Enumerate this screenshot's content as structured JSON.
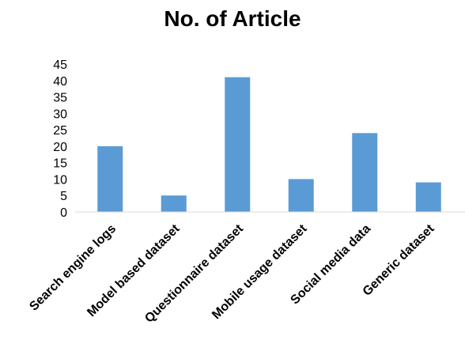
{
  "chart_data": {
    "type": "bar",
    "title": "No. of Article",
    "xlabel": "",
    "ylabel": "",
    "categories": [
      "Search engine logs",
      "Model based dataset",
      "Questionnaire dataset",
      "Mobile usage dataset",
      "Social media data",
      "Generic dataset"
    ],
    "values": [
      20,
      5,
      41,
      10,
      24,
      9
    ],
    "ylim": [
      0,
      45
    ],
    "yticks": [
      0,
      5,
      10,
      15,
      20,
      25,
      30,
      35,
      40,
      45
    ],
    "grid": false,
    "legend": "none",
    "bar_color": "#5b9bd5",
    "axis_color": "#d9d9d9"
  }
}
